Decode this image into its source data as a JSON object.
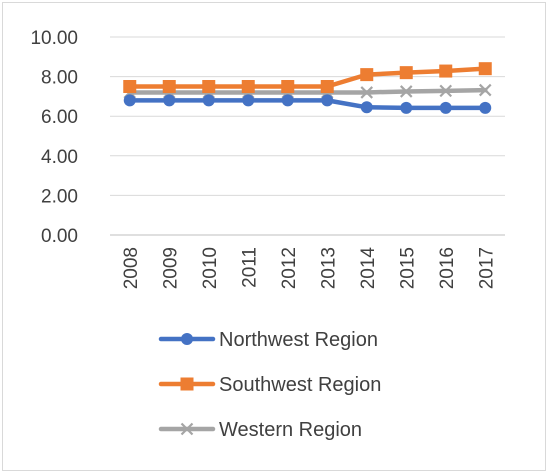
{
  "chart_data": {
    "type": "line",
    "title": "",
    "xlabel": "",
    "ylabel": "",
    "categories": [
      "2008",
      "2009",
      "2010",
      "2011",
      "2012",
      "2013",
      "2014",
      "2015",
      "2016",
      "2017"
    ],
    "ylim": [
      0,
      10
    ],
    "yticks": [
      "0.00",
      "2.00",
      "4.00",
      "6.00",
      "8.00",
      "10.00"
    ],
    "grid": true,
    "legend_position": "bottom",
    "series": [
      {
        "name": "Northwest Region",
        "color": "#4472C4",
        "marker": "circle",
        "values": [
          6.8,
          6.8,
          6.8,
          6.8,
          6.8,
          6.8,
          6.45,
          6.42,
          6.42,
          6.42
        ]
      },
      {
        "name": "Southwest Region",
        "color": "#ED7D31",
        "marker": "square",
        "values": [
          7.5,
          7.5,
          7.5,
          7.5,
          7.5,
          7.5,
          8.1,
          8.2,
          8.28,
          8.4
        ]
      },
      {
        "name": "Western Region",
        "color": "#A5A5A5",
        "marker": "x",
        "values": [
          7.2,
          7.2,
          7.2,
          7.2,
          7.2,
          7.2,
          7.2,
          7.25,
          7.28,
          7.32
        ]
      }
    ]
  }
}
